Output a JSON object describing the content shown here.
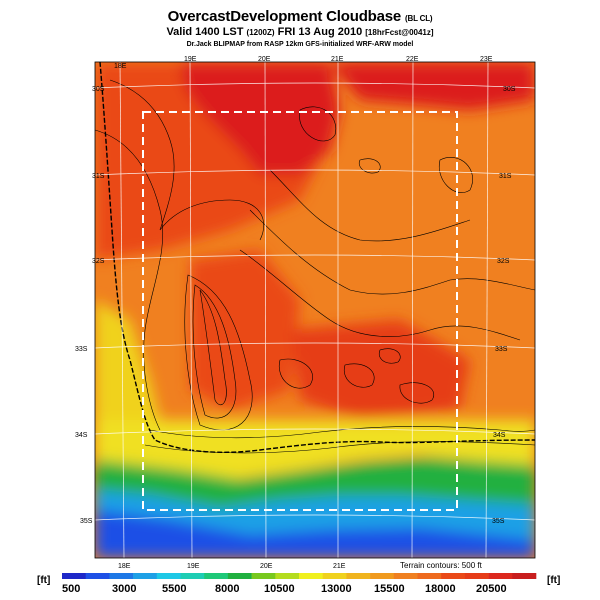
{
  "title": {
    "main": "OvercastDevelopment Cloudbase",
    "main_suffix": "(BL CL)",
    "valid_line": "Valid 1400 LST",
    "valid_small": "(1200Z)",
    "valid_date": "FRI 13 Aug 2010",
    "forecast_tag": "[18hrFcst@0041z]",
    "subtitle": "Dr.Jack BLIPMAP from RASP 12km GFS-initialized WRF-ARW model"
  },
  "map": {
    "lon_labels_top": [
      "18E",
      "19E",
      "20E",
      "21E",
      "22E",
      "23E"
    ],
    "lon_labels_bottom": [
      "18E",
      "19E",
      "20E",
      "21E"
    ],
    "lat_labels_left": [
      "30S",
      "31S",
      "32S",
      "33S",
      "34S",
      "35S"
    ],
    "lat_labels_right": [
      "30S",
      "31S",
      "32S",
      "33S",
      "34S",
      "35S"
    ],
    "terrain_note": "Terrain contours: 500 ft",
    "colors": {
      "sea_deep": "#1e50e6",
      "sea": "#1ea0e6",
      "coast_green": "#20b040",
      "yellow": "#f0e020",
      "orange": "#f08020",
      "red_orange": "#ea4a18",
      "red": "#dc1e1e",
      "dashed_box": "#ffffff",
      "grid": "#ffffff",
      "contour": "#000000"
    }
  },
  "colorbar": {
    "unit_left": "[ft]",
    "unit_right": "[ft]",
    "labels": [
      "500",
      "3000",
      "5500",
      "8000",
      "10500",
      "13000",
      "15500",
      "18000",
      "20500"
    ],
    "colors": [
      "#1e28c8",
      "#1e50e6",
      "#1e78e6",
      "#1ea0e6",
      "#1ec8e6",
      "#1ecdb4",
      "#1ec878",
      "#20b040",
      "#78c81e",
      "#b4dc1e",
      "#f0f01e",
      "#f0d21e",
      "#f0b41e",
      "#f09a1e",
      "#f08020",
      "#ee6a1e",
      "#ea4a18",
      "#e63c18",
      "#dc281e",
      "#c81e1e"
    ]
  }
}
